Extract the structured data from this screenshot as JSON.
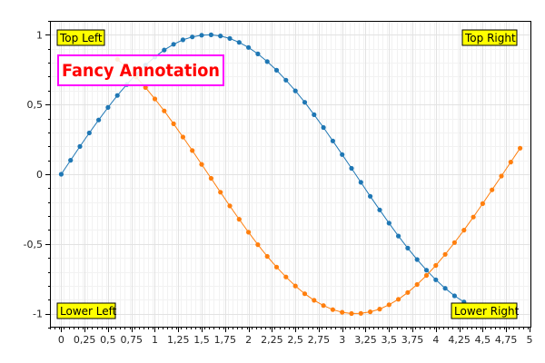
{
  "chart_data": {
    "type": "scatter",
    "title": "",
    "xlabel": "",
    "ylabel": "",
    "xlim": [
      -0.12,
      5.02
    ],
    "ylim": [
      -1.1,
      1.1
    ],
    "grid": true,
    "x_ticks": [
      "0",
      "0,25",
      "0,5",
      "0,75",
      "1",
      "1,25",
      "1,5",
      "1,75",
      "2",
      "2,25",
      "2,5",
      "2,75",
      "3",
      "3,25",
      "3,5",
      "3,75",
      "4",
      "4,25",
      "4,5",
      "4,75",
      "5"
    ],
    "y_ticks": [
      "-1",
      "-0,5",
      "0",
      "0,5",
      "1"
    ],
    "series": [
      {
        "color": "#1f77b4",
        "x": [
          0,
          0.1,
          0.2,
          0.3,
          0.4,
          0.5,
          0.6,
          0.7,
          0.8,
          0.9,
          1.0,
          1.1,
          1.2,
          1.3,
          1.4,
          1.5,
          1.6,
          1.7,
          1.8,
          1.9,
          2.0,
          2.1,
          2.2,
          2.3,
          2.4,
          2.5,
          2.6,
          2.7,
          2.8,
          2.9,
          3.0,
          3.1,
          3.2,
          3.3,
          3.4,
          3.5,
          3.6,
          3.7,
          3.8,
          3.9,
          4.0,
          4.1,
          4.2,
          4.3
        ],
        "y": [
          0,
          0.1,
          0.199,
          0.296,
          0.389,
          0.479,
          0.565,
          0.644,
          0.717,
          0.783,
          0.841,
          0.891,
          0.932,
          0.964,
          0.985,
          0.997,
          1.0,
          0.992,
          0.974,
          0.946,
          0.909,
          0.863,
          0.808,
          0.746,
          0.675,
          0.598,
          0.516,
          0.427,
          0.335,
          0.239,
          0.141,
          0.042,
          -0.058,
          -0.158,
          -0.256,
          -0.351,
          -0.443,
          -0.53,
          -0.612,
          -0.688,
          -0.757,
          -0.818,
          -0.872,
          -0.916
        ]
      },
      {
        "color": "#ff7f0e",
        "x": [
          0.6,
          0.7,
          0.8,
          0.9,
          1.0,
          1.1,
          1.2,
          1.3,
          1.4,
          1.5,
          1.6,
          1.7,
          1.8,
          1.9,
          2.0,
          2.1,
          2.2,
          2.3,
          2.4,
          2.5,
          2.6,
          2.7,
          2.8,
          2.9,
          3.0,
          3.1,
          3.2,
          3.3,
          3.4,
          3.5,
          3.6,
          3.7,
          3.8,
          3.9,
          4.0,
          4.1,
          4.2,
          4.3,
          4.4,
          4.5,
          4.6,
          4.7,
          4.8,
          4.9
        ],
        "y": [
          0.825,
          0.765,
          0.697,
          0.622,
          0.54,
          0.454,
          0.362,
          0.267,
          0.17,
          0.071,
          -0.029,
          -0.129,
          -0.227,
          -0.323,
          -0.416,
          -0.505,
          -0.589,
          -0.666,
          -0.737,
          -0.801,
          -0.857,
          -0.904,
          -0.942,
          -0.971,
          -0.99,
          -0.999,
          -0.998,
          -0.987,
          -0.967,
          -0.936,
          -0.897,
          -0.848,
          -0.791,
          -0.726,
          -0.654,
          -0.575,
          -0.49,
          -0.401,
          -0.307,
          -0.211,
          -0.112,
          -0.013,
          0.087,
          0.187
        ]
      }
    ],
    "annotations": {
      "top_left": "Top Left",
      "top_right": "Top Right",
      "lower_left": "Lower Left",
      "lower_right": "Lower Right",
      "fancy": "Fancy Annotation"
    },
    "annotation_colors": {
      "corner_fill": "#ffff00",
      "fancy_fill": "#ffffff",
      "fancy_border": "#ff00ff",
      "fancy_text": "#ff0000"
    }
  }
}
